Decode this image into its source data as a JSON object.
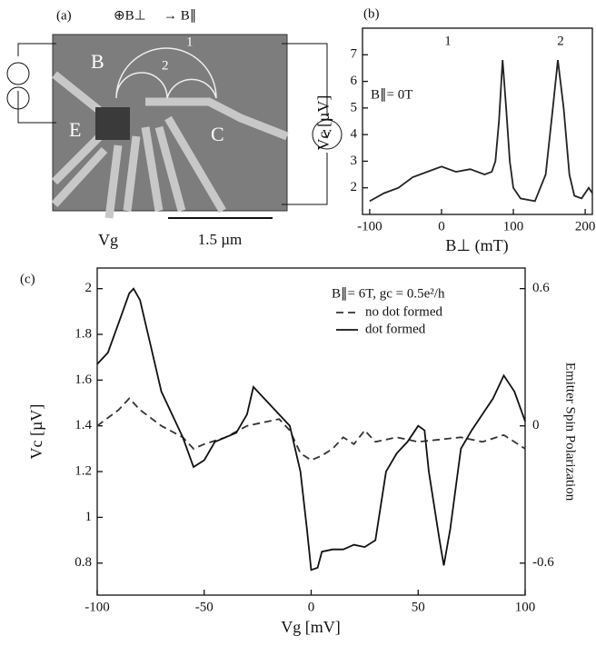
{
  "panel_a": {
    "label": "(a)",
    "field_labels": [
      "⊕B⊥",
      "→ B∥"
    ],
    "regions": [
      "B",
      "E",
      "C",
      "1",
      "2"
    ],
    "meter": "V",
    "gate": "Vg",
    "scale_bar": "1.5 µm"
  },
  "chart_data": [
    {
      "type": "line",
      "title": "(b)",
      "xlabel": "B⊥ (mT)",
      "ylabel": "Vc [µV]",
      "annotations": [
        "1",
        "2",
        "B∥= 0T"
      ],
      "x": [
        -100,
        -80,
        -60,
        -40,
        -20,
        0,
        20,
        40,
        60,
        70,
        75,
        80,
        85,
        90,
        95,
        100,
        110,
        130,
        145,
        155,
        162,
        170,
        178,
        185,
        195,
        205,
        210
      ],
      "series": [
        {
          "color": "#222222",
          "style": "solid",
          "values": [
            1.5,
            1.8,
            2.0,
            2.4,
            2.6,
            2.8,
            2.6,
            2.7,
            2.5,
            2.6,
            3.0,
            4.5,
            6.8,
            5.0,
            3.0,
            2.0,
            1.6,
            1.5,
            2.5,
            5.0,
            6.8,
            5.0,
            2.5,
            1.7,
            1.6,
            2.0,
            1.8
          ]
        }
      ],
      "xlim": [
        -110,
        210
      ],
      "xticks": [
        -100,
        0,
        100,
        200
      ],
      "ylim": [
        1,
        8
      ],
      "yticks": [
        2,
        3,
        4,
        5,
        6,
        7
      ]
    },
    {
      "type": "line",
      "title": "(c)",
      "xlabel": "Vg [mV]",
      "ylabel": "Vc [µV]",
      "y2label": "Emitter Spin Polarization",
      "annotations": [
        "B∥= 6T, gc = 0.5e²/h"
      ],
      "series": [
        {
          "name": "no dot formed",
          "color": "#333333",
          "style": "dashed",
          "x": [
            -100,
            -90,
            -85,
            -80,
            -70,
            -60,
            -55,
            -50,
            -40,
            -30,
            -20,
            -15,
            -10,
            -5,
            0,
            5,
            10,
            15,
            20,
            25,
            30,
            40,
            50,
            60,
            70,
            80,
            90,
            100
          ],
          "values": [
            1.4,
            1.47,
            1.52,
            1.47,
            1.4,
            1.35,
            1.3,
            1.32,
            1.35,
            1.4,
            1.42,
            1.43,
            1.38,
            1.28,
            1.25,
            1.27,
            1.3,
            1.35,
            1.32,
            1.38,
            1.33,
            1.35,
            1.33,
            1.34,
            1.35,
            1.33,
            1.36,
            1.3
          ]
        },
        {
          "name": "dot formed",
          "color": "#111111",
          "style": "solid",
          "x": [
            -100,
            -95,
            -90,
            -85,
            -83,
            -80,
            -75,
            -70,
            -65,
            -60,
            -55,
            -50,
            -45,
            -40,
            -35,
            -30,
            -27,
            -25,
            -20,
            -15,
            -10,
            -5,
            -2,
            0,
            3,
            5,
            10,
            15,
            20,
            25,
            30,
            35,
            40,
            45,
            50,
            53,
            55,
            60,
            62,
            65,
            70,
            75,
            80,
            85,
            90,
            95,
            100
          ],
          "values": [
            1.67,
            1.72,
            1.85,
            1.98,
            2.0,
            1.95,
            1.75,
            1.55,
            1.45,
            1.35,
            1.22,
            1.25,
            1.33,
            1.35,
            1.37,
            1.45,
            1.57,
            1.55,
            1.5,
            1.45,
            1.4,
            1.2,
            0.95,
            0.77,
            0.78,
            0.85,
            0.86,
            0.86,
            0.88,
            0.87,
            0.9,
            1.2,
            1.28,
            1.33,
            1.4,
            1.38,
            1.2,
            0.9,
            0.79,
            0.95,
            1.3,
            1.38,
            1.45,
            1.52,
            1.62,
            1.55,
            1.42
          ]
        }
      ],
      "xlim": [
        -100,
        100
      ],
      "xticks": [
        -100,
        -50,
        0,
        50,
        100
      ],
      "ylim": [
        0.66,
        2.09
      ],
      "yticks": [
        0.8,
        1.0,
        1.2,
        1.4,
        1.6,
        1.8,
        2.0
      ],
      "y2lim": [
        -0.74,
        0.69
      ],
      "y2ticks": [
        -0.6,
        0,
        0.6
      ]
    }
  ]
}
